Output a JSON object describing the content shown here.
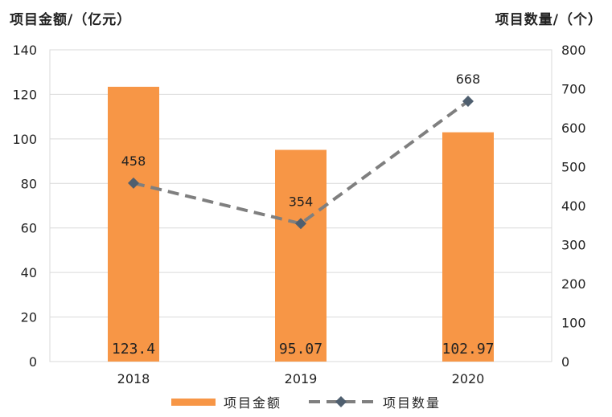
{
  "chart_data": {
    "type": "bar+line",
    "categories": [
      "2018",
      "2019",
      "2020"
    ],
    "series": [
      {
        "name": "项目金额",
        "type": "bar",
        "axis": "left",
        "values": [
          123.4,
          95.07,
          102.97
        ],
        "labels": [
          "123.4",
          "95.07",
          "102.97"
        ],
        "color": "#F79646"
      },
      {
        "name": "项目数量",
        "type": "line",
        "axis": "right",
        "style": "dashed",
        "marker": "diamond",
        "values": [
          458,
          354,
          668
        ],
        "labels": [
          "458",
          "354",
          "668"
        ],
        "color": "#7F7F7F",
        "marker_color": "#4F5F6F"
      }
    ],
    "ylabel_left": "项目金额/（亿元）",
    "ylabel_right": "项目数量/（个）",
    "ylim_left": [
      0,
      140
    ],
    "yticks_left": [
      0,
      20,
      40,
      60,
      80,
      100,
      120,
      140
    ],
    "ylim_right": [
      0,
      800
    ],
    "yticks_right": [
      0,
      100,
      200,
      300,
      400,
      500,
      600,
      700,
      800
    ],
    "grid": true,
    "legend_position": "bottom"
  }
}
